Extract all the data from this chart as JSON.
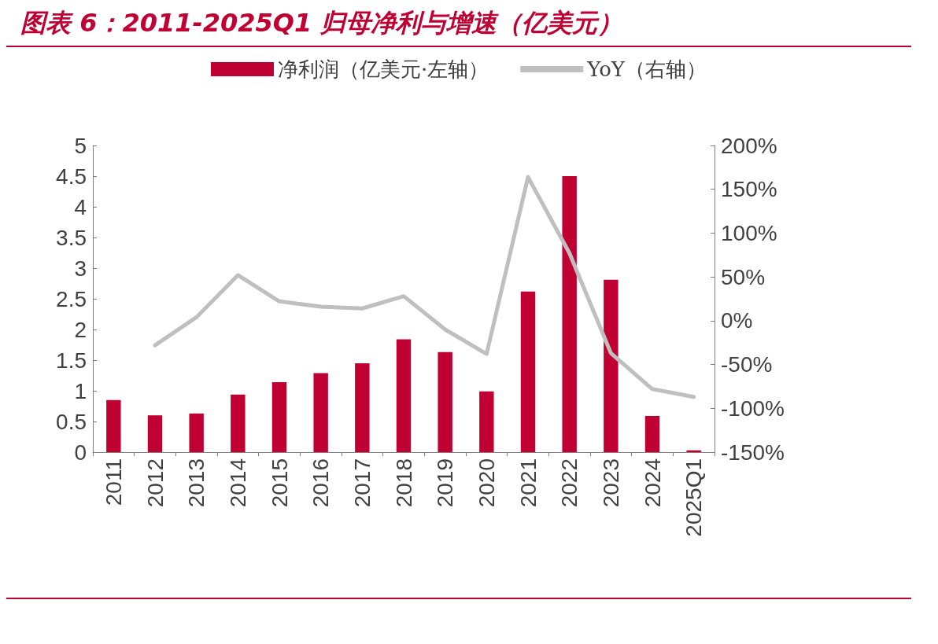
{
  "chart_data": {
    "type": "bar",
    "title": "图表 6：2011-2025Q1 归母净利与增速（亿美元）",
    "categories": [
      "2011",
      "2012",
      "2013",
      "2014",
      "2015",
      "2016",
      "2017",
      "2018",
      "2019",
      "2020",
      "2021",
      "2022",
      "2023",
      "2024",
      "2025Q1"
    ],
    "series": [
      {
        "name": "净利润（亿美元·左轴）",
        "color": "#c00032",
        "values": [
          0.85,
          0.6,
          0.63,
          0.94,
          1.14,
          1.29,
          1.45,
          1.84,
          1.63,
          0.99,
          2.62,
          4.5,
          2.81,
          0.59,
          0.03
        ]
      },
      {
        "name": "YoY（右轴）",
        "type": "line",
        "axis": "y2",
        "color": "#bfbfbf",
        "values": [
          null,
          -28,
          4,
          52,
          22,
          16,
          14,
          28,
          -10,
          -38,
          164,
          77,
          -37,
          -78,
          -87
        ]
      }
    ],
    "ylim": [
      0,
      5
    ],
    "yticks": [
      0,
      0.5,
      1,
      1.5,
      2,
      2.5,
      3,
      3.5,
      4,
      4.5,
      5
    ],
    "y2lim": [
      -150,
      200
    ],
    "y2ticks": [
      {
        "value": -150,
        "label": "-150%"
      },
      {
        "value": -100,
        "label": "-100%"
      },
      {
        "value": -50,
        "label": "-50%"
      },
      {
        "value": 0,
        "label": "0%"
      },
      {
        "value": 50,
        "label": "50%"
      },
      {
        "value": 100,
        "label": "100%"
      },
      {
        "value": 150,
        "label": "150%"
      },
      {
        "value": 200,
        "label": "200%"
      }
    ],
    "grid": false,
    "legend": "top",
    "marker": "none",
    "line_style": "solid"
  }
}
